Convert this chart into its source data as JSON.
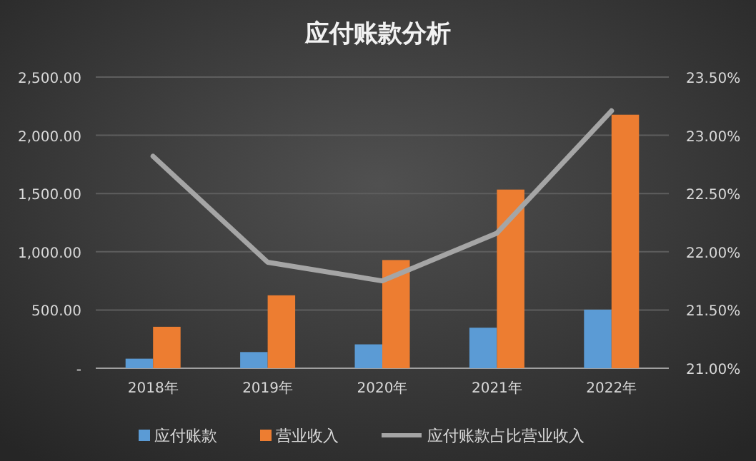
{
  "chart_data": {
    "type": "bar",
    "title": "应付账款分析",
    "categories": [
      "2018年",
      "2019年",
      "2020年",
      "2021年",
      "2022年"
    ],
    "series": [
      {
        "name": "应付账款",
        "color": "#5b9bd5",
        "values": [
          82,
          139,
          205,
          348,
          503
        ]
      },
      {
        "name": "营业收入",
        "color": "#ed7d31",
        "values": [
          356,
          626,
          929,
          1534,
          2177
        ]
      },
      {
        "name": "应付账款占比营业收入",
        "type": "line",
        "axis": "y2",
        "color": "#a5a5a5",
        "values": [
          22.82,
          21.91,
          21.75,
          22.16,
          23.21
        ]
      }
    ],
    "ylim": [
      0,
      2500
    ],
    "yticks": [
      {
        "value": 0,
        "label": "-"
      },
      {
        "value": 500,
        "label": "500.00"
      },
      {
        "value": 1000,
        "label": "1,000.00"
      },
      {
        "value": 1500,
        "label": "1,500.00"
      },
      {
        "value": 2000,
        "label": "2,000.00"
      },
      {
        "value": 2500,
        "label": "2,500.00"
      }
    ],
    "y2lim": [
      21,
      23.5
    ],
    "y2ticks": [
      {
        "value": 21,
        "label": "21.00%"
      },
      {
        "value": 21.5,
        "label": "21.50%"
      },
      {
        "value": 22,
        "label": "22.00%"
      },
      {
        "value": 22.5,
        "label": "22.50%"
      },
      {
        "value": 23,
        "label": "23.00%"
      },
      {
        "value": 23.5,
        "label": "23.50%"
      }
    ],
    "grid": "y",
    "legend": "bottom",
    "marker": "none",
    "line_style": "solid"
  }
}
